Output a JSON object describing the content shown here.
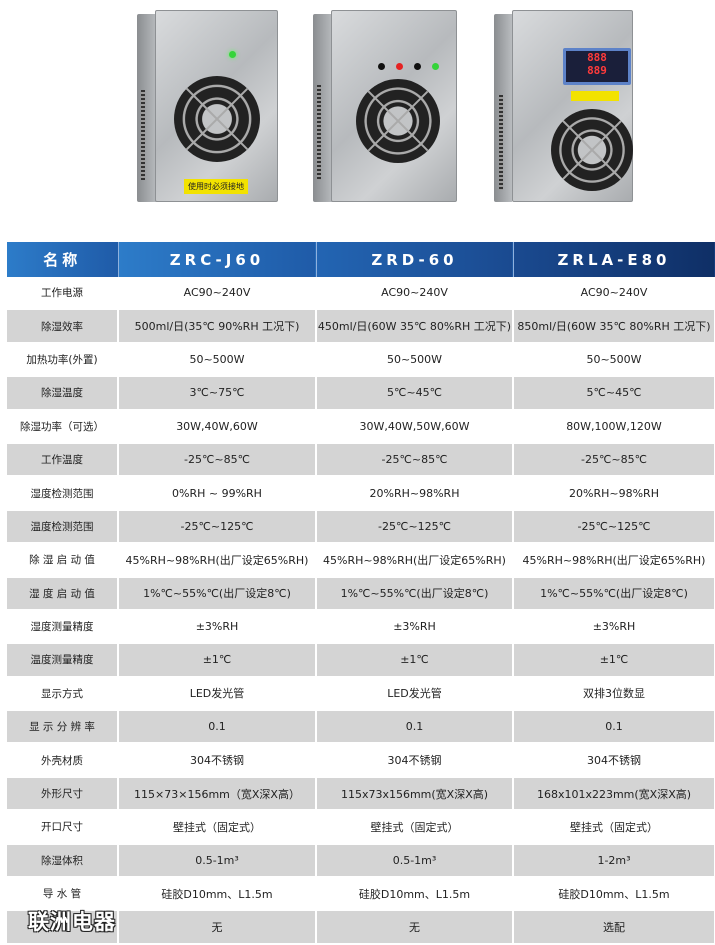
{
  "products": [
    {
      "model": "ZRC-J60",
      "warning_label": "使用时必须接地",
      "led_color": "#35d43a"
    },
    {
      "model": "ZRD-60",
      "led_colors": [
        "#111111",
        "#e52222",
        "#111111",
        "#35d43a"
      ]
    },
    {
      "model": "ZRLA-E80",
      "display": [
        "888",
        "889"
      ]
    }
  ],
  "table": {
    "header": [
      "名称",
      "ZRC-J60",
      "ZRD-60",
      "ZRLA-E80"
    ],
    "rows": [
      [
        "工作电源",
        "AC90~240V",
        "AC90~240V",
        "AC90~240V"
      ],
      [
        "除湿效率",
        "500ml/日(35℃ 90%RH 工况下)",
        "450ml/日(60W 35℃ 80%RH 工况下)",
        "850ml/日(60W 35℃ 80%RH 工况下)"
      ],
      [
        "加热功率(外置)",
        "50~500W",
        "50~500W",
        "50~500W"
      ],
      [
        "除湿温度",
        "3℃~75℃",
        "5℃~45℃",
        "5℃~45℃"
      ],
      [
        "除湿功率（可选）",
        "30W,40W,60W",
        "30W,40W,50W,60W",
        "80W,100W,120W"
      ],
      [
        "工作温度",
        "-25℃~85℃",
        "-25℃~85℃",
        "-25℃~85℃"
      ],
      [
        "湿度检测范围",
        "0%RH ~ 99%RH",
        "20%RH~98%RH",
        "20%RH~98%RH"
      ],
      [
        "温度检测范围",
        "-25℃~125℃",
        "-25℃~125℃",
        "-25℃~125℃"
      ],
      [
        "除 湿 启 动 值",
        "45%RH~98%RH(出厂设定65%RH)",
        "45%RH~98%RH(出厂设定65%RH)",
        "45%RH~98%RH(出厂设定65%RH)"
      ],
      [
        "湿 度 启 动 值",
        "1%℃~55%℃(出厂设定8℃)",
        "1%℃~55%℃(出厂设定8℃)",
        "1%℃~55%℃(出厂设定8℃)"
      ],
      [
        "湿度测量精度",
        "±3%RH",
        "±3%RH",
        "±3%RH"
      ],
      [
        "温度测量精度",
        "±1℃",
        "±1℃",
        "±1℃"
      ],
      [
        "显示方式",
        "LED发光管",
        "LED发光管",
        "双排3位数显"
      ],
      [
        "显 示 分 辨 率",
        "0.1",
        "0.1",
        "0.1"
      ],
      [
        "外壳材质",
        "304不锈钢",
        "304不锈钢",
        "304不锈钢"
      ],
      [
        "外形尺寸",
        "115×73×156mm（宽X深X高）",
        "115x73x156mm(宽X深X高)",
        "168x101x223mm(宽X深X高)"
      ],
      [
        "开口尺寸",
        "壁挂式（固定式）",
        "壁挂式（固定式）",
        "壁挂式（固定式）"
      ],
      [
        "除湿体积",
        "0.5-1m³",
        "0.5-1m³",
        "1-2m³"
      ],
      [
        "导 水 管",
        "硅胶D10mm、L1.5m",
        "硅胶D10mm、L1.5m",
        "硅胶D10mm、L1.5m"
      ],
      [
        "",
        "无",
        "无",
        "选配"
      ]
    ]
  },
  "watermark": "联洲电器"
}
